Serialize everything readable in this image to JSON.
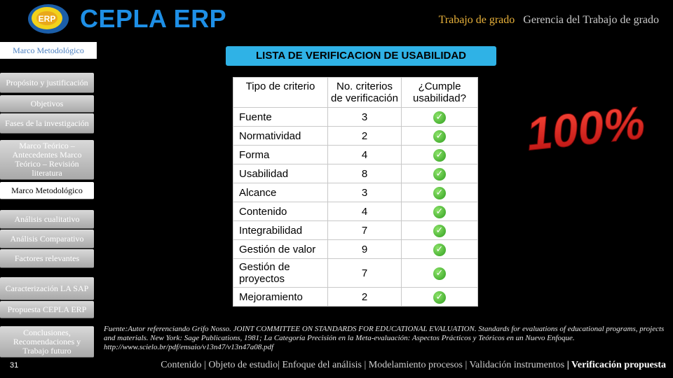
{
  "brand": {
    "logo_text": "ERP",
    "name": "CEPLA ERP"
  },
  "header": {
    "active": "Trabajo de grado",
    "other": "Gerencia del Trabajo de grado"
  },
  "sidebar": {
    "top_label": "Marco Metodológico",
    "items": [
      {
        "label": "Propósito y justificación"
      },
      {
        "label": "Objetivos"
      },
      {
        "label": "Fases de la investigación"
      },
      {
        "label": "Marco Teórico – Antecedentes Marco Teórico – Revisión literatura"
      },
      {
        "label": "Marco Metodológico",
        "selected": true
      },
      {
        "label": "Análisis cualitativo"
      },
      {
        "label": "Análisis Comparativo"
      },
      {
        "label": "Factores relevantes"
      },
      {
        "label": "Caracterización LA SAP"
      },
      {
        "label": "Propuesta CEPLA ERP"
      },
      {
        "label": "Conclusiones, Recomendaciones y Trabajo futuro"
      }
    ]
  },
  "main": {
    "title": "LISTA DE VERIFICACION DE USABILIDAD",
    "table": {
      "headers": [
        "Tipo de criterio",
        "No. criterios de verificación",
        "¿Cumple usabilidad?"
      ],
      "rows": [
        {
          "tipo": "Fuente",
          "num": "3"
        },
        {
          "tipo": "Normatividad",
          "num": "2"
        },
        {
          "tipo": "Forma",
          "num": "4"
        },
        {
          "tipo": "Usabilidad",
          "num": "8"
        },
        {
          "tipo": "Alcance",
          "num": "3"
        },
        {
          "tipo": "Contenido",
          "num": "4"
        },
        {
          "tipo": "Integrabilidad",
          "num": "7"
        },
        {
          "tipo": "Gestión de valor",
          "num": "9"
        },
        {
          "tipo": "Gestión de proyectos",
          "num": "7"
        },
        {
          "tipo": "Mejoramiento",
          "num": "2"
        }
      ],
      "check_icon": "check-circle-icon"
    },
    "badge_text": "100%",
    "source": "Fuente:Autor referenciando Grifo Nosso. JOINT COMMITTEE ON STANDARDS FOR EDUCATIONAL EVALUATION. Standards for evaluations of educational programs, projects and materials. New York: Sage Publications, 1981; La Categoría Precisión en la Meta-evaluación: Aspectos Prácticos y Teóricos en un Nuevo Enfoque. http://www.scielo.br/pdf/ensaio/v13n47/v13n47a08.pdf"
  },
  "footer": {
    "page": "31",
    "nav": [
      "Contenido",
      "Objeto de estudio",
      "Enfoque del análisis",
      "Modelamiento procesos",
      "Validación instrumentos"
    ],
    "current": "Verificación propuesta"
  }
}
